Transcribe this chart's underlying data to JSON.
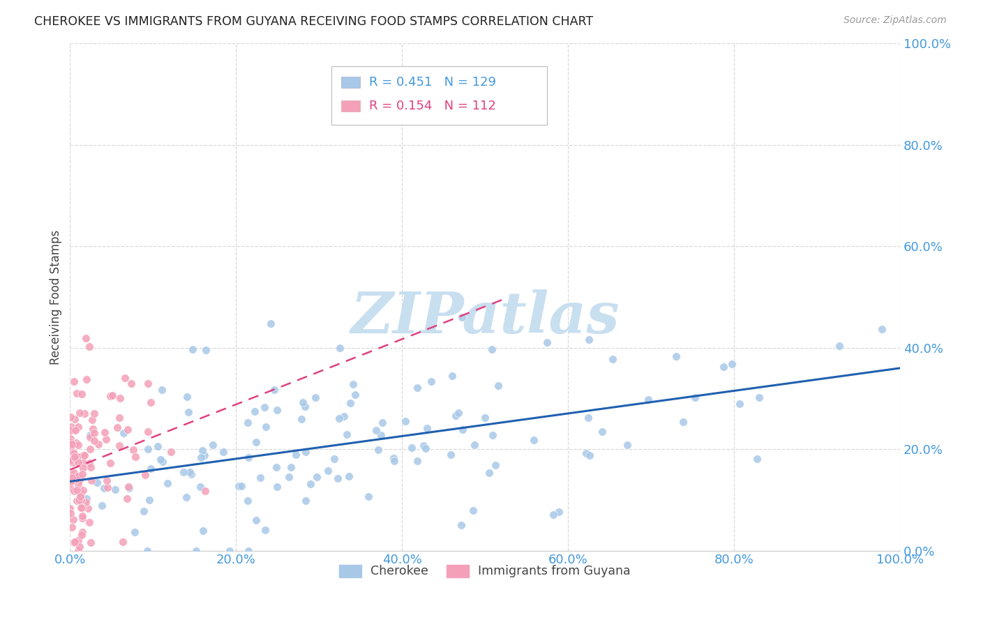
{
  "title": "CHEROKEE VS IMMIGRANTS FROM GUYANA RECEIVING FOOD STAMPS CORRELATION CHART",
  "source": "Source: ZipAtlas.com",
  "xlabel_ticks": [
    "0.0%",
    "20.0%",
    "40.0%",
    "60.0%",
    "80.0%",
    "100.0%"
  ],
  "ylabel_label": "Receiving Food Stamps",
  "ytick_labels": [
    "0.0%",
    "20.0%",
    "40.0%",
    "60.0%",
    "80.0%",
    "100.0%"
  ],
  "legend_label1": "Cherokee",
  "legend_label2": "Immigrants from Guyana",
  "R1": 0.451,
  "N1": 129,
  "R2": 0.154,
  "N2": 112,
  "color_blue": "#a8c8e8",
  "color_pink": "#f4a0b8",
  "line_color_blue": "#2060b0",
  "line_color_pink": "#e04080",
  "watermark_color": "#c8dff0",
  "background_color": "#ffffff",
  "grid_color": "#d8d8d8",
  "title_color": "#222222",
  "axis_tick_color": "#4499dd",
  "seed_cherokee": 42,
  "seed_guyana": 7
}
